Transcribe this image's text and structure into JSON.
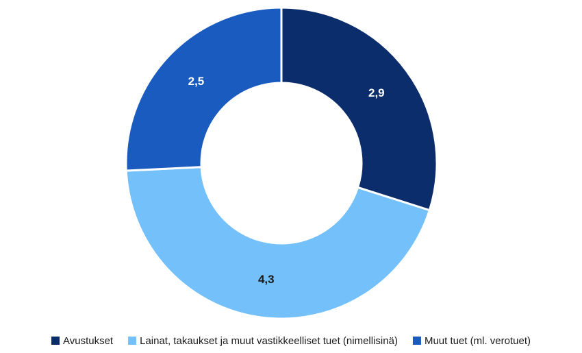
{
  "chart_data": {
    "type": "donut",
    "categories": [
      "Avustukset",
      "Lainat, takaukset ja muut vastikkeelliset tuet (nimellisinä)",
      "Muut tuet (ml. verotuet)"
    ],
    "values": [
      2.9,
      4.3,
      2.5
    ],
    "value_labels": [
      "2,9",
      "4,3",
      "2,5"
    ],
    "colors": [
      "#0b2d6b",
      "#74c0fb",
      "#1a5bbf"
    ],
    "legend": "bottom"
  }
}
